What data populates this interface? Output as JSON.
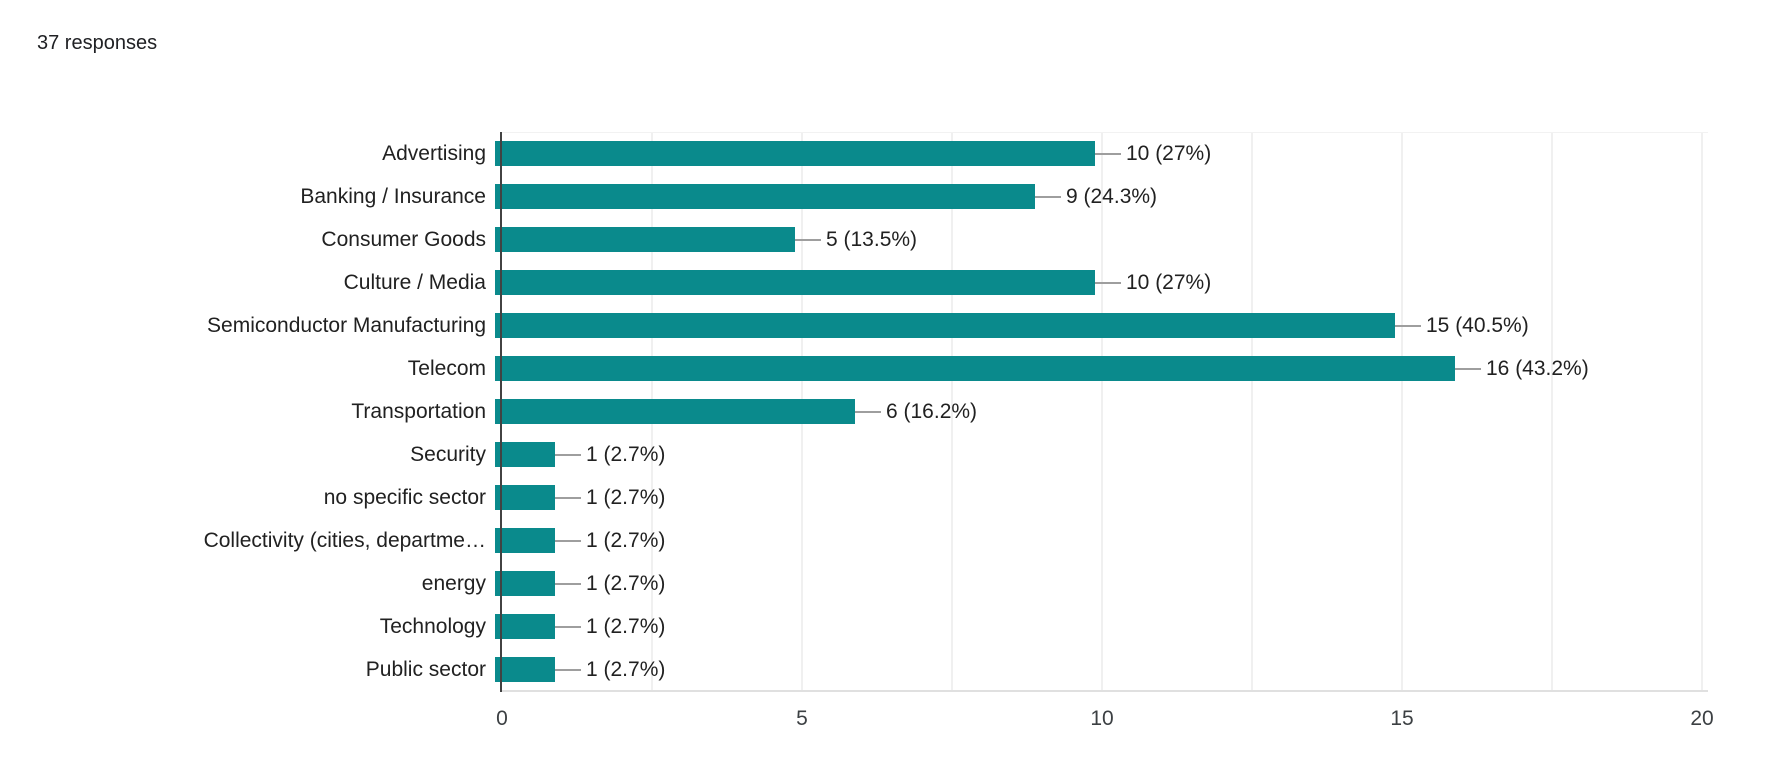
{
  "header": {
    "responses_label": "37 responses"
  },
  "chart_data": {
    "type": "bar",
    "orientation": "horizontal",
    "title": "",
    "xlabel": "",
    "ylabel": "",
    "categories": [
      "Advertising",
      "Banking / Insurance",
      "Consumer Goods",
      "Culture / Media",
      "Semiconductor Manufacturing",
      "Telecom",
      "Transportation",
      "Security",
      "no specific sector",
      "Collectivity (cities, departme…",
      "energy",
      "Technology",
      "Public sector"
    ],
    "values": [
      10,
      9,
      5,
      10,
      15,
      16,
      6,
      1,
      1,
      1,
      1,
      1,
      1
    ],
    "value_labels": [
      "10 (27%)",
      "9 (24.3%)",
      "5 (13.5%)",
      "10 (27%)",
      "15 (40.5%)",
      "16 (43.2%)",
      "6 (16.2%)",
      "1 (2.7%)",
      "1 (2.7%)",
      "1 (2.7%)",
      "1 (2.7%)",
      "1 (2.7%)",
      "1 (2.7%)"
    ],
    "total_responses": 37,
    "xlim": [
      0,
      20
    ],
    "xticks": [
      0,
      5,
      10,
      15,
      20
    ],
    "gridline_step": 2.5,
    "grid": true,
    "legend": false,
    "bar_color": "#0a8a8c",
    "connector_color": "#9e9e9e",
    "gridline_color": "#f0f0f0",
    "axis_line_color": "#424242"
  }
}
